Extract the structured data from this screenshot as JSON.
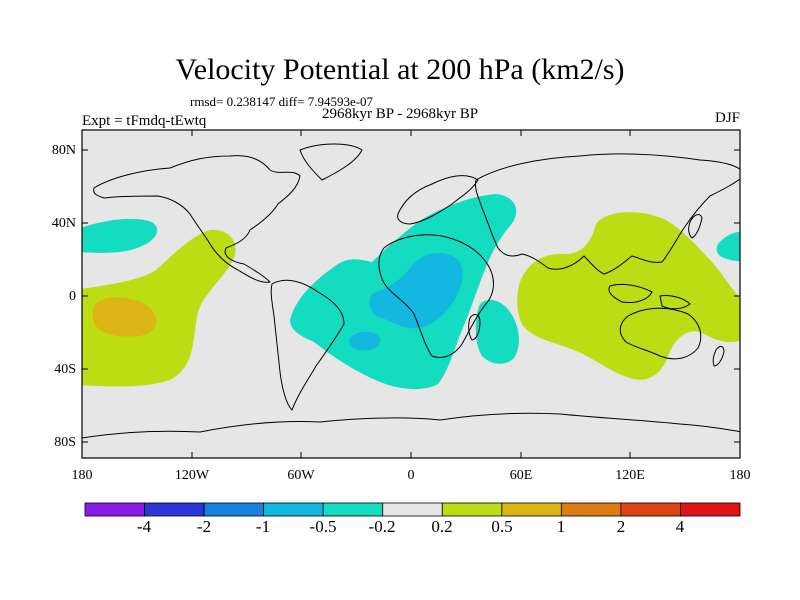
{
  "title": "Velocity Potential at 200 hPa (km2/s)",
  "stats": "rmsd= 0.238147 diff= 7.94593e-07",
  "experiment": "Expt = tFmdq-tEwtq",
  "period": "2968kyr BP - 2968kyr BP",
  "season": "DJF",
  "axes": {
    "lat_labels": [
      "80N",
      "40N",
      "0",
      "40S",
      "80S"
    ],
    "lon_labels": [
      "180",
      "120W",
      "60W",
      "0",
      "60E",
      "120E",
      "180"
    ]
  },
  "colorbar": {
    "labels": [
      "-4",
      "-2",
      "-1",
      "-0.5",
      "-0.2",
      "0.2",
      "0.5",
      "1",
      "2",
      "4"
    ],
    "colors": [
      "#8a1ee6",
      "#2a36d8",
      "#1a80e0",
      "#12b8e0",
      "#14dcc0",
      "#e6e6e6",
      "#bcdc14",
      "#dcb414",
      "#dc7a14",
      "#dc4414",
      "#e01414"
    ]
  },
  "map": {
    "background_color": "#e6e6e6",
    "regions": [
      {
        "name": "west-pacific-negative",
        "level": "-0.2",
        "color": "#14dcc0"
      },
      {
        "name": "east-pacific-positive",
        "level": "0.2",
        "color": "#bcdc14"
      },
      {
        "name": "central-pacific-max",
        "level": "0.5",
        "color": "#dcb414"
      },
      {
        "name": "atlantic-africa-negative",
        "level": "-0.2",
        "color": "#14dcc0"
      },
      {
        "name": "africa-core-negative",
        "level": "-0.5",
        "color": "#12b8e0"
      },
      {
        "name": "indian-ocean-negative",
        "level": "-0.2",
        "color": "#14dcc0"
      },
      {
        "name": "indo-pacific-positive",
        "level": "0.2",
        "color": "#bcdc14"
      },
      {
        "name": "east-edge-negative",
        "level": "-0.2",
        "color": "#14dcc0"
      }
    ]
  }
}
